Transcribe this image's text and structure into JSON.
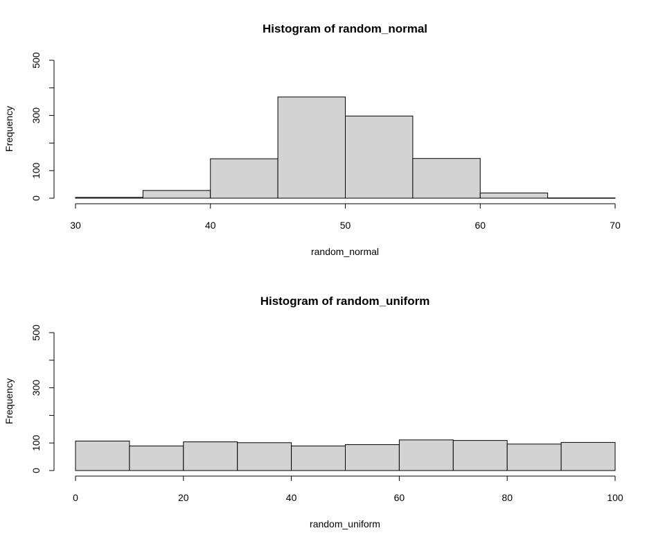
{
  "chart_data": [
    {
      "type": "bar",
      "title": "Histogram of random_normal",
      "xlabel": "random_normal",
      "ylabel": "Frequency",
      "xlim": [
        30,
        70
      ],
      "ylim": [
        0,
        500
      ],
      "x_ticks": [
        "30",
        "40",
        "50",
        "60",
        "70"
      ],
      "y_ticks": [
        "0",
        "100",
        "300",
        "500"
      ],
      "bins": [
        {
          "start": 30,
          "end": 35,
          "count": 3
        },
        {
          "start": 35,
          "end": 40,
          "count": 28
        },
        {
          "start": 40,
          "end": 45,
          "count": 143
        },
        {
          "start": 45,
          "end": 50,
          "count": 367
        },
        {
          "start": 50,
          "end": 55,
          "count": 298
        },
        {
          "start": 55,
          "end": 60,
          "count": 144
        },
        {
          "start": 60,
          "end": 65,
          "count": 19
        },
        {
          "start": 65,
          "end": 70,
          "count": 1
        }
      ]
    },
    {
      "type": "bar",
      "title": "Histogram of random_uniform",
      "xlabel": "random_uniform",
      "ylabel": "Frequency",
      "xlim": [
        0,
        100
      ],
      "ylim": [
        0,
        500
      ],
      "x_ticks": [
        "0",
        "20",
        "40",
        "60",
        "80",
        "100"
      ],
      "y_ticks": [
        "0",
        "100",
        "300",
        "500"
      ],
      "bins": [
        {
          "start": 0,
          "end": 10,
          "count": 107
        },
        {
          "start": 10,
          "end": 20,
          "count": 89
        },
        {
          "start": 20,
          "end": 30,
          "count": 104
        },
        {
          "start": 30,
          "end": 40,
          "count": 101
        },
        {
          "start": 40,
          "end": 50,
          "count": 89
        },
        {
          "start": 50,
          "end": 60,
          "count": 94
        },
        {
          "start": 60,
          "end": 70,
          "count": 111
        },
        {
          "start": 70,
          "end": 80,
          "count": 109
        },
        {
          "start": 80,
          "end": 90,
          "count": 96
        },
        {
          "start": 90,
          "end": 100,
          "count": 102
        }
      ]
    }
  ]
}
